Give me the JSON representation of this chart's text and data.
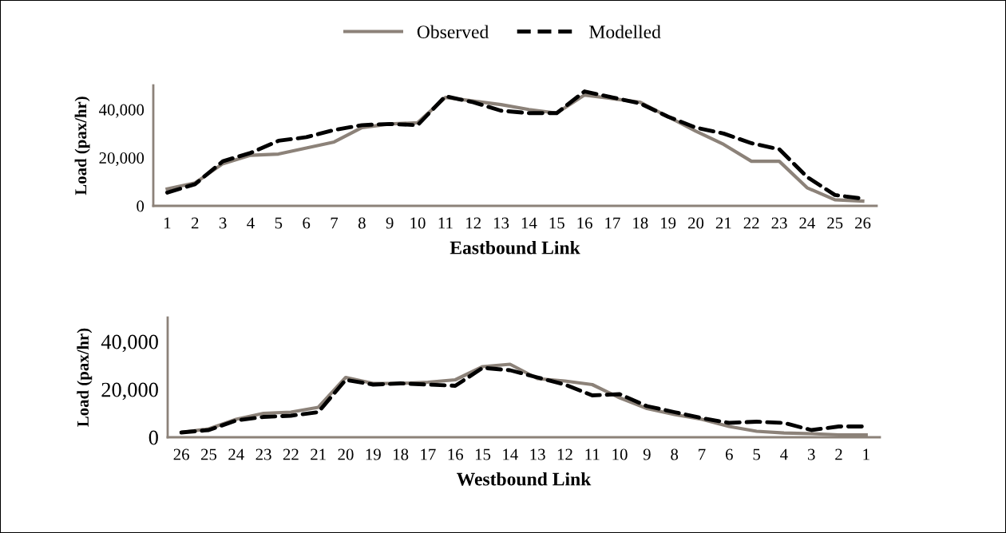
{
  "chart_data": [
    {
      "type": "line",
      "xlabel": "Eastbound Link",
      "ylabel": "Load (pax/hr)",
      "categories": [
        "1",
        "2",
        "3",
        "4",
        "5",
        "6",
        "7",
        "8",
        "9",
        "10",
        "11",
        "12",
        "13",
        "14",
        "15",
        "16",
        "17",
        "18",
        "19",
        "20",
        "21",
        "22",
        "23",
        "24",
        "25",
        "26"
      ],
      "ylim": [
        0,
        50000
      ],
      "yticks": [
        {
          "value": 0,
          "label": "0"
        },
        {
          "value": 20000,
          "label": "20,000"
        },
        {
          "value": 40000,
          "label": "40,000"
        }
      ],
      "legend": "top",
      "grid": false,
      "series": [
        {
          "name": "Observed",
          "color": "#8c8279",
          "line_style": "solid",
          "values": [
            7000,
            9500,
            17500,
            21000,
            21500,
            24000,
            26500,
            32500,
            34000,
            34500,
            45000,
            43500,
            42000,
            40000,
            38500,
            46000,
            44500,
            43000,
            37000,
            31000,
            25500,
            18500,
            18500,
            7500,
            2500,
            2000
          ]
        },
        {
          "name": "Modelled",
          "color": "#000000",
          "line_style": "dashed",
          "values": [
            5500,
            9000,
            18500,
            22000,
            27000,
            28500,
            31500,
            33500,
            34000,
            33500,
            45500,
            43000,
            39500,
            38500,
            38500,
            47500,
            45000,
            42500,
            37000,
            32500,
            30000,
            26000,
            23500,
            12000,
            4500,
            3000
          ]
        }
      ]
    },
    {
      "type": "line",
      "xlabel": "Westbound Link",
      "ylabel": "Load (pax/hr)",
      "categories": [
        "26",
        "25",
        "24",
        "23",
        "22",
        "21",
        "20",
        "19",
        "18",
        "17",
        "16",
        "15",
        "14",
        "13",
        "12",
        "11",
        "10",
        "9",
        "8",
        "7",
        "6",
        "5",
        "4",
        "3",
        "2",
        "1"
      ],
      "ylim": [
        0,
        50000
      ],
      "yticks": [
        {
          "value": 0,
          "label": "0"
        },
        {
          "value": 20000,
          "label": "20,000"
        },
        {
          "value": 40000,
          "label": "40,000"
        }
      ],
      "grid": false,
      "series": [
        {
          "color": "#8c8279",
          "line_style": "solid",
          "values": [
            2000,
            3500,
            7500,
            10000,
            10500,
            12500,
            25000,
            22500,
            22500,
            23000,
            24000,
            29500,
            30500,
            24500,
            23500,
            22000,
            16500,
            12000,
            9500,
            7500,
            4500,
            2500,
            1800,
            1500,
            1000,
            1000
          ]
        },
        {
          "color": "#000000",
          "line_style": "dashed",
          "values": [
            2000,
            3000,
            7000,
            8500,
            9000,
            10500,
            24000,
            22000,
            22500,
            22000,
            21500,
            29000,
            28000,
            25000,
            22000,
            17500,
            18000,
            13000,
            10500,
            8000,
            6000,
            6500,
            6000,
            3000,
            4500,
            4500
          ]
        }
      ]
    }
  ]
}
